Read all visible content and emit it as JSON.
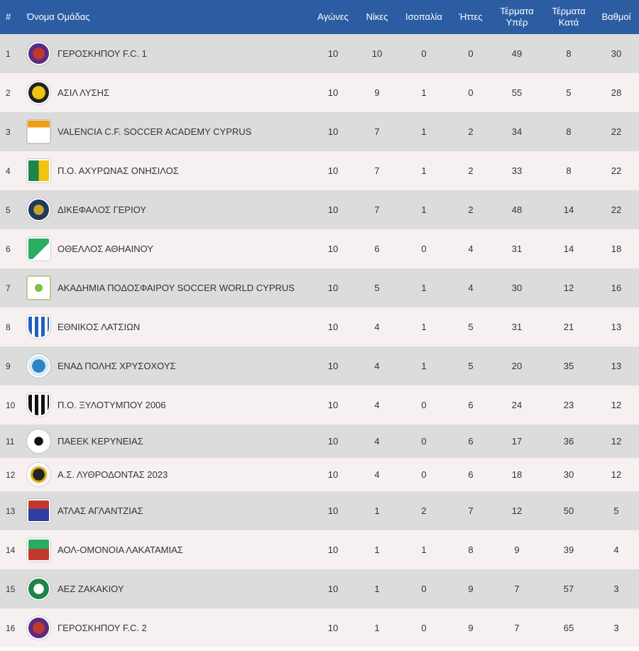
{
  "headers": {
    "rank": "#",
    "team": "Όνομα Ομάδας",
    "played": "Αγώνες",
    "wins": "Νίκες",
    "draws": "Ισοπαλία",
    "losses": "Ήττες",
    "gf_line1": "Τέρματα",
    "gf_line2": "Υπέρ",
    "ga_line1": "Τέρματα",
    "ga_line2": "Κατά",
    "points": "Βαθμοί"
  },
  "colors": {
    "header_bg": "#2c5da3",
    "row_odd": "#dcdcdc",
    "row_even": "#f7f0f0"
  },
  "rows": [
    {
      "rank": "1",
      "team": "ΓΕΡΟΣΚΗΠΟΥ F.C. 1",
      "played": "10",
      "wins": "10",
      "draws": "0",
      "losses": "0",
      "gf": "49",
      "ga": "8",
      "points": "30",
      "logo": "geroskipou-fc-logo"
    },
    {
      "rank": "2",
      "team": "ΑΣΙΛ ΛΥΣΗΣ",
      "played": "10",
      "wins": "9",
      "draws": "1",
      "losses": "0",
      "gf": "55",
      "ga": "5",
      "points": "28",
      "logo": "asil-lysis-logo"
    },
    {
      "rank": "3",
      "team": "VALENCIA C.F. SOCCER ACADEMY CYPRUS",
      "played": "10",
      "wins": "7",
      "draws": "1",
      "losses": "2",
      "gf": "34",
      "ga": "8",
      "points": "22",
      "logo": "valencia-academy-logo"
    },
    {
      "rank": "4",
      "team": "Π.Ο. ΑΧΥΡΩΝΑΣ ΟΝΗΣΙΛΟΣ",
      "played": "10",
      "wins": "7",
      "draws": "1",
      "losses": "2",
      "gf": "33",
      "ga": "8",
      "points": "22",
      "logo": "achyronas-logo"
    },
    {
      "rank": "5",
      "team": "ΔΙΚΕΦΑΛΟΣ ΓΕΡΙΟΥ",
      "played": "10",
      "wins": "7",
      "draws": "1",
      "losses": "2",
      "gf": "48",
      "ga": "14",
      "points": "22",
      "logo": "dikefalos-logo"
    },
    {
      "rank": "6",
      "team": "ΟΘΕΛΛΟΣ ΑΘΗΑΙΝΟΥ",
      "played": "10",
      "wins": "6",
      "draws": "0",
      "losses": "4",
      "gf": "31",
      "ga": "14",
      "points": "18",
      "logo": "othellos-logo"
    },
    {
      "rank": "7",
      "team": "ΑΚΑΔΗΜΙΑ ΠΟΔΟΣΦΑΙΡΟΥ SOCCER WORLD CYPRUS",
      "played": "10",
      "wins": "5",
      "draws": "1",
      "losses": "4",
      "gf": "30",
      "ga": "12",
      "points": "16",
      "logo": "soccer-world-logo"
    },
    {
      "rank": "8",
      "team": "ΕΘΝΙΚΟΣ ΛΑΤΣΙΩΝ",
      "played": "10",
      "wins": "4",
      "draws": "1",
      "losses": "5",
      "gf": "31",
      "ga": "21",
      "points": "13",
      "logo": "ethnikos-latsion-logo"
    },
    {
      "rank": "9",
      "team": "ΕΝΑΔ ΠΟΛΗΣ ΧΡΥΣΟΧΟΥΣ",
      "played": "10",
      "wins": "4",
      "draws": "1",
      "losses": "5",
      "gf": "20",
      "ga": "35",
      "points": "13",
      "logo": "enad-logo"
    },
    {
      "rank": "10",
      "team": "Π.Ο. ΞΥΛΟΤΥΜΠΟΥ 2006",
      "played": "10",
      "wins": "4",
      "draws": "0",
      "losses": "6",
      "gf": "24",
      "ga": "23",
      "points": "12",
      "logo": "xylotympou-logo"
    },
    {
      "rank": "11",
      "team": "ΠΑΕΕΚ ΚΕΡΥΝΕΙΑΣ",
      "played": "10",
      "wins": "4",
      "draws": "0",
      "losses": "6",
      "gf": "17",
      "ga": "36",
      "points": "12",
      "logo": "paeek-logo"
    },
    {
      "rank": "12",
      "team": "Α.Σ. ΛΥΘΡΟΔΟΝΤΑΣ 2023",
      "played": "10",
      "wins": "4",
      "draws": "0",
      "losses": "6",
      "gf": "18",
      "ga": "30",
      "points": "12",
      "logo": "lythrodontas-logo"
    },
    {
      "rank": "13",
      "team": "ΑΤΛΑΣ ΑΓΛΑΝΤΖΙΑΣ",
      "played": "10",
      "wins": "1",
      "draws": "2",
      "losses": "7",
      "gf": "12",
      "ga": "50",
      "points": "5",
      "logo": "atlas-logo"
    },
    {
      "rank": "14",
      "team": "ΑΟΛ-ΟΜΟΝΟΙΑ ΛΑΚΑΤΑΜΙΑΣ",
      "played": "10",
      "wins": "1",
      "draws": "1",
      "losses": "8",
      "gf": "9",
      "ga": "39",
      "points": "4",
      "logo": "omonoia-lakatamias-logo"
    },
    {
      "rank": "15",
      "team": "ΑΕΖ ΖΑΚΑΚΙΟΥ",
      "played": "10",
      "wins": "1",
      "draws": "0",
      "losses": "9",
      "gf": "7",
      "ga": "57",
      "points": "3",
      "logo": "aez-logo"
    },
    {
      "rank": "16",
      "team": "ΓΕΡΟΣΚΗΠΟΥ F.C. 2",
      "played": "10",
      "wins": "1",
      "draws": "0",
      "losses": "9",
      "gf": "7",
      "ga": "65",
      "points": "3",
      "logo": "geroskipou-fc-logo"
    }
  ]
}
